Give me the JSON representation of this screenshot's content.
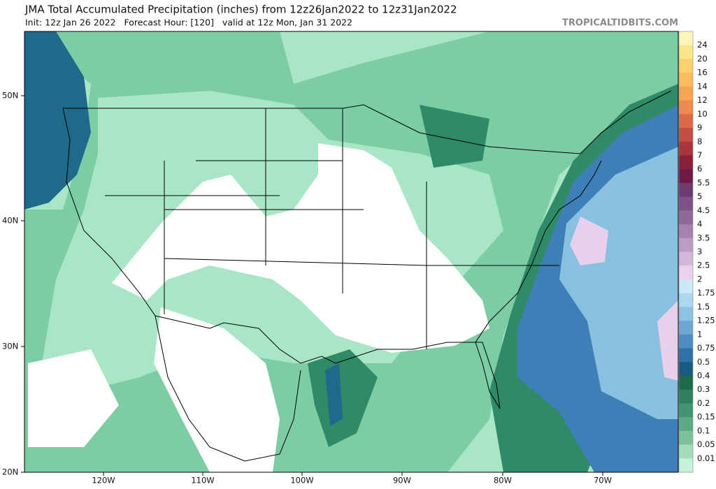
{
  "header": {
    "title": "JMA Total Accumulated Precipitation (inches) from 12z26Jan2022 to 12z31Jan2022",
    "subtitle": "Init: 12z Jan 26 2022   Forecast Hour: [120]   valid at 12z Mon, Jan 31 2022",
    "credit": "TROPICALTIDBITS.COM"
  },
  "colorbar": {
    "labels": [
      "24",
      "20",
      "16",
      "14",
      "12",
      "10",
      "9",
      "8",
      "7",
      "6",
      "5.5",
      "5",
      "4.5",
      "4",
      "3.5",
      "3",
      "2.5",
      "2",
      "1.75",
      "1.5",
      "1.25",
      "1",
      "0.75",
      "0.5",
      "0.4",
      "0.3",
      "0.2",
      "0.15",
      "0.1",
      "0.05",
      "0.01"
    ]
  },
  "lat_labels": [
    "50N",
    "40N",
    "30N",
    "20N"
  ],
  "lon_labels": [
    "120W",
    "110W",
    "100W",
    "90W",
    "80W",
    "70W"
  ]
}
